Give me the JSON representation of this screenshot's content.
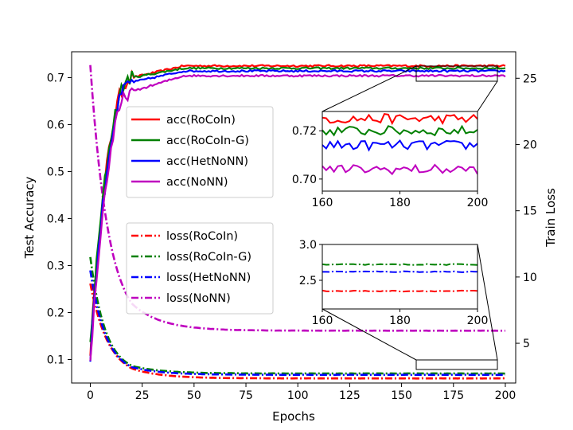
{
  "chart_data": {
    "type": "line",
    "title": "",
    "xlabel": "Epochs",
    "ylabel_left": "Test Accuracy",
    "ylabel_right": "Train Loss",
    "xlim": [
      -9,
      205
    ],
    "ylim_left": [
      0.05,
      0.755
    ],
    "ylim_right": [
      2.0,
      27.0
    ],
    "x_ticks": [
      0,
      25,
      50,
      75,
      100,
      125,
      150,
      175,
      200
    ],
    "x_tick_labels": [
      "0",
      "25",
      "50",
      "75",
      "100",
      "125",
      "150",
      "175",
      "200"
    ],
    "y_left_ticks": [
      0.1,
      0.2,
      0.3,
      0.4,
      0.5,
      0.6,
      0.7
    ],
    "y_left_tick_labels": [
      "0.1",
      "0.2",
      "0.3",
      "0.4",
      "0.5",
      "0.6",
      "0.7"
    ],
    "y_right_ticks": [
      5,
      10,
      15,
      20,
      25
    ],
    "y_right_tick_labels": [
      "5",
      "10",
      "15",
      "20",
      "25"
    ],
    "grid": false,
    "accuracy_series": [
      {
        "name": "acc(RoCoIn)",
        "color": "#ff0000",
        "start": 0.12,
        "rise_end": 20,
        "rise_value": 0.7,
        "plateau": 0.725
      },
      {
        "name": "acc(RoCoIn-G)",
        "color": "#008000",
        "start": 0.13,
        "rise_end": 20,
        "rise_value": 0.7,
        "plateau": 0.72
      },
      {
        "name": "acc(HetNoNN)",
        "color": "#0000ff",
        "start": 0.11,
        "rise_end": 20,
        "rise_value": 0.69,
        "plateau": 0.714
      },
      {
        "name": "acc(NoNN)",
        "color": "#bf00bf",
        "start": 0.1,
        "rise_end": 20,
        "rise_value": 0.67,
        "plateau": 0.704
      }
    ],
    "loss_series": [
      {
        "name": "loss(RoCoIn)",
        "color": "#ff0000",
        "start": 9.5,
        "at_20": 3.1,
        "plateau": 2.35
      },
      {
        "name": "loss(RoCoIn-G)",
        "color": "#008000",
        "start": 11.5,
        "at_20": 3.3,
        "plateau": 2.72
      },
      {
        "name": "loss(HetNoNN)",
        "color": "#0000ff",
        "start": 10.5,
        "at_20": 3.2,
        "plateau": 2.62
      },
      {
        "name": "loss(NoNN)",
        "color": "#bf00bf",
        "start": 26.0,
        "at_20": 8.0,
        "plateau": 5.95
      }
    ],
    "legend_placement": "center",
    "inset_accuracy": {
      "xlim": [
        160,
        200
      ],
      "ylim": [
        0.695,
        0.728
      ],
      "x_ticks": [
        160,
        180,
        200
      ],
      "x_tick_labels": [
        "160",
        "180",
        "200"
      ],
      "y_ticks": [
        0.7,
        0.72
      ],
      "y_tick_labels": [
        "0.70",
        "0.72"
      ]
    },
    "inset_loss": {
      "xlim": [
        160,
        200
      ],
      "ylim": [
        2.1,
        3.0
      ],
      "x_ticks": [
        160,
        180,
        200
      ],
      "x_tick_labels": [
        "160",
        "180",
        "200"
      ],
      "y_ticks": [
        2.5,
        3.0
      ],
      "y_tick_labels": [
        "2.5",
        "3.0"
      ]
    }
  }
}
